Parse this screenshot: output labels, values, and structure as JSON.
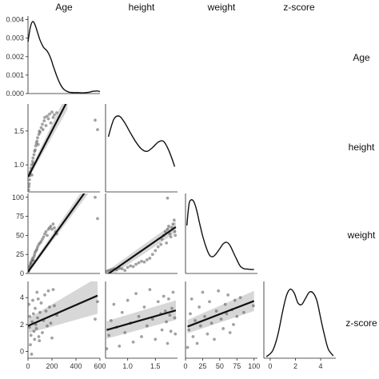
{
  "chart_data": {
    "type": "scatter-matrix",
    "variables": [
      "Age",
      "height",
      "weight",
      "z-score"
    ],
    "ranges": {
      "Age": [
        0,
        600
      ],
      "height": [
        0.6,
        1.9
      ],
      "weight": [
        0,
        105
      ],
      "z-score": [
        -0.5,
        5.2
      ]
    },
    "tick_labels": {
      "x": {
        "Age": [
          "0",
          "200",
          "400",
          "600"
        ],
        "height": [
          "1.0",
          "1.5"
        ],
        "weight": [
          "0",
          "25",
          "50",
          "75",
          "100"
        ],
        "z-score": [
          "0",
          "2",
          "4"
        ]
      },
      "y": {
        "Age": [
          "0.004",
          "0.003",
          "0.002",
          "0.001",
          "0.000"
        ],
        "height": [
          "1.5",
          "1.0"
        ],
        "weight": [
          "100",
          "75",
          "50",
          "25",
          "0"
        ],
        "z-score": [
          "4",
          "2",
          "0"
        ]
      }
    },
    "tick_values": {
      "Age": [
        0,
        200,
        400,
        600
      ],
      "height": [
        1.0,
        1.5
      ],
      "weight": [
        0,
        25,
        50,
        75,
        100
      ],
      "z-score": [
        0,
        2,
        4
      ],
      "age_density_y": [
        0.004,
        0.003,
        0.002,
        0.001,
        0.0
      ]
    },
    "density_Age": {
      "x": [
        0,
        20,
        40,
        60,
        80,
        100,
        130,
        160,
        190,
        210,
        240,
        270,
        300,
        340,
        380,
        420,
        460,
        500,
        540,
        580,
        600
      ],
      "y": [
        0.0028,
        0.0036,
        0.0039,
        0.0037,
        0.0033,
        0.0029,
        0.0025,
        0.0023,
        0.0019,
        0.0015,
        0.00095,
        0.0005,
        0.00022,
        8e-05,
        5e-05,
        5e-05,
        4e-05,
        6e-05,
        0.00012,
        0.00014,
        0.0001
      ],
      "ylim": [
        0,
        0.0042
      ]
    },
    "density_height": {
      "x": [
        0.65,
        0.75,
        0.85,
        0.95,
        1.05,
        1.15,
        1.25,
        1.35,
        1.45,
        1.55,
        1.65,
        1.75,
        1.85
      ],
      "y": [
        0.72,
        0.95,
        0.99,
        0.9,
        0.77,
        0.65,
        0.56,
        0.53,
        0.58,
        0.65,
        0.66,
        0.53,
        0.33
      ],
      "ylim": [
        0,
        1.15
      ]
    },
    "density_weight": {
      "x": [
        2,
        5,
        8,
        12,
        16,
        20,
        25,
        30,
        35,
        40,
        45,
        50,
        55,
        60,
        65,
        70,
        75,
        80,
        85,
        90,
        95,
        100
      ],
      "y": [
        0.6,
        0.86,
        0.92,
        0.9,
        0.8,
        0.65,
        0.47,
        0.33,
        0.23,
        0.21,
        0.25,
        0.31,
        0.37,
        0.39,
        0.35,
        0.26,
        0.17,
        0.09,
        0.06,
        0.055,
        0.05,
        0.05
      ],
      "ylim": [
        0,
        1.0
      ]
    },
    "density_zscore": {
      "x": [
        -0.3,
        0.2,
        0.6,
        1.0,
        1.3,
        1.6,
        1.9,
        2.2,
        2.5,
        2.8,
        3.1,
        3.4,
        3.7,
        4.0,
        4.3,
        4.6,
        5.0
      ],
      "y": [
        0.02,
        0.1,
        0.3,
        0.62,
        0.82,
        0.9,
        0.85,
        0.72,
        0.7,
        0.78,
        0.86,
        0.85,
        0.75,
        0.52,
        0.3,
        0.12,
        0.03
      ],
      "ylim": [
        0,
        1.0
      ]
    },
    "scatter_Age_height": [
      [
        5,
        0.63
      ],
      [
        8,
        0.68
      ],
      [
        10,
        0.72
      ],
      [
        12,
        0.78
      ],
      [
        15,
        0.84
      ],
      [
        18,
        0.87
      ],
      [
        20,
        0.9
      ],
      [
        25,
        0.95
      ],
      [
        30,
        1.0
      ],
      [
        33,
        0.85
      ],
      [
        38,
        1.05
      ],
      [
        42,
        1.1
      ],
      [
        45,
        1.02
      ],
      [
        50,
        1.15
      ],
      [
        55,
        1.2
      ],
      [
        60,
        1.22
      ],
      [
        65,
        1.28
      ],
      [
        70,
        1.32
      ],
      [
        75,
        1.35
      ],
      [
        80,
        1.4
      ],
      [
        85,
        1.3
      ],
      [
        90,
        1.45
      ],
      [
        95,
        1.5
      ],
      [
        100,
        1.48
      ],
      [
        110,
        1.55
      ],
      [
        120,
        1.6
      ],
      [
        125,
        1.52
      ],
      [
        135,
        1.65
      ],
      [
        140,
        1.7
      ],
      [
        150,
        1.58
      ],
      [
        160,
        1.72
      ],
      [
        170,
        1.68
      ],
      [
        180,
        1.75
      ],
      [
        190,
        1.62
      ],
      [
        200,
        1.78
      ],
      [
        210,
        1.7
      ],
      [
        220,
        1.74
      ],
      [
        240,
        1.77
      ],
      [
        560,
        1.66
      ],
      [
        580,
        1.52
      ]
    ],
    "fit_Age_height": {
      "x": [
        0,
        330
      ],
      "y": [
        0.82,
        1.95
      ],
      "lo": [
        0.78,
        1.82
      ],
      "hi": [
        0.86,
        2.08
      ]
    },
    "scatter_Age_weight": [
      [
        5,
        3
      ],
      [
        8,
        5
      ],
      [
        10,
        7
      ],
      [
        14,
        9
      ],
      [
        18,
        11
      ],
      [
        22,
        14
      ],
      [
        26,
        13
      ],
      [
        30,
        16
      ],
      [
        35,
        18
      ],
      [
        40,
        20
      ],
      [
        45,
        17
      ],
      [
        50,
        22
      ],
      [
        55,
        25
      ],
      [
        60,
        28
      ],
      [
        68,
        30
      ],
      [
        75,
        32
      ],
      [
        80,
        35
      ],
      [
        90,
        38
      ],
      [
        100,
        40
      ],
      [
        110,
        42
      ],
      [
        120,
        45
      ],
      [
        130,
        48
      ],
      [
        140,
        52
      ],
      [
        150,
        55
      ],
      [
        160,
        50
      ],
      [
        170,
        58
      ],
      [
        180,
        60
      ],
      [
        190,
        62
      ],
      [
        200,
        58
      ],
      [
        210,
        65
      ],
      [
        220,
        60
      ],
      [
        230,
        55
      ],
      [
        240,
        52
      ],
      [
        560,
        100
      ],
      [
        580,
        72
      ]
    ],
    "fit_Age_weight": {
      "x": [
        0,
        500
      ],
      "y": [
        2,
        112
      ],
      "lo": [
        0,
        104
      ],
      "hi": [
        5,
        120
      ]
    },
    "scatter_height_weight": [
      [
        0.62,
        3
      ],
      [
        0.66,
        4
      ],
      [
        0.7,
        5
      ],
      [
        0.75,
        6
      ],
      [
        0.8,
        5
      ],
      [
        0.85,
        7
      ],
      [
        0.9,
        6
      ],
      [
        0.95,
        4
      ],
      [
        1.0,
        8
      ],
      [
        1.05,
        10
      ],
      [
        1.1,
        9
      ],
      [
        1.15,
        12
      ],
      [
        1.2,
        14
      ],
      [
        1.25,
        16
      ],
      [
        1.3,
        15
      ],
      [
        1.35,
        18
      ],
      [
        1.4,
        20
      ],
      [
        1.45,
        25
      ],
      [
        1.5,
        30
      ],
      [
        1.55,
        35
      ],
      [
        1.6,
        38
      ],
      [
        1.62,
        45
      ],
      [
        1.65,
        50
      ],
      [
        1.68,
        55
      ],
      [
        1.7,
        40
      ],
      [
        1.72,
        58
      ],
      [
        1.74,
        62
      ],
      [
        1.76,
        52
      ],
      [
        1.78,
        48
      ],
      [
        1.8,
        60
      ],
      [
        1.82,
        65
      ],
      [
        1.84,
        70
      ],
      [
        1.85,
        55
      ],
      [
        1.86,
        50
      ],
      [
        1.72,
        99
      ]
    ],
    "fit_height_weight": {
      "x": [
        0.62,
        1.87
      ],
      "y": [
        -2,
        61
      ],
      "lo": [
        -7,
        54
      ],
      "hi": [
        3,
        68
      ]
    },
    "scatter_Age_zscore": [
      [
        8,
        3.5
      ],
      [
        12,
        1.8
      ],
      [
        15,
        2.6
      ],
      [
        20,
        0.5
      ],
      [
        25,
        1.2
      ],
      [
        30,
        -0.2
      ],
      [
        35,
        2.2
      ],
      [
        40,
        3.8
      ],
      [
        45,
        2.8
      ],
      [
        50,
        1.5
      ],
      [
        55,
        0.9
      ],
      [
        60,
        3.2
      ],
      [
        65,
        2.0
      ],
      [
        70,
        1.7
      ],
      [
        75,
        4.4
      ],
      [
        80,
        2.5
      ],
      [
        85,
        3.9
      ],
      [
        90,
        1.1
      ],
      [
        95,
        0.8
      ],
      [
        100,
        2.9
      ],
      [
        110,
        3.6
      ],
      [
        120,
        1.4
      ],
      [
        130,
        2.3
      ],
      [
        140,
        4.2
      ],
      [
        150,
        3.0
      ],
      [
        160,
        1.9
      ],
      [
        170,
        4.5
      ],
      [
        180,
        3.3
      ],
      [
        190,
        2.1
      ],
      [
        200,
        1.0
      ],
      [
        210,
        4.6
      ],
      [
        220,
        3.4
      ],
      [
        240,
        2.7
      ],
      [
        560,
        2.4
      ],
      [
        580,
        3.7
      ]
    ],
    "fit_Age_zscore": {
      "x": [
        0,
        580
      ],
      "y": [
        1.9,
        4.15
      ],
      "lo": [
        1.35,
        2.8
      ],
      "hi": [
        2.45,
        5.5
      ]
    },
    "scatter_height_zscore": [
      [
        0.62,
        0.2
      ],
      [
        0.66,
        1.2
      ],
      [
        0.7,
        2.3
      ],
      [
        0.75,
        3.5
      ],
      [
        0.8,
        1.8
      ],
      [
        0.85,
        0.4
      ],
      [
        0.9,
        2.9
      ],
      [
        0.95,
        1.4
      ],
      [
        1.0,
        3.8
      ],
      [
        1.05,
        2.1
      ],
      [
        1.1,
        0.7
      ],
      [
        1.15,
        4.3
      ],
      [
        1.2,
        2.6
      ],
      [
        1.25,
        1.1
      ],
      [
        1.3,
        3.3
      ],
      [
        1.35,
        1.9
      ],
      [
        1.4,
        4.6
      ],
      [
        1.45,
        2.4
      ],
      [
        1.5,
        0.9
      ],
      [
        1.55,
        3.7
      ],
      [
        1.6,
        2.8
      ],
      [
        1.62,
        1.6
      ],
      [
        1.65,
        4.1
      ],
      [
        1.68,
        3.0
      ],
      [
        1.7,
        2.2
      ],
      [
        1.72,
        0.6
      ],
      [
        1.74,
        3.9
      ],
      [
        1.76,
        2.7
      ],
      [
        1.78,
        1.5
      ],
      [
        1.8,
        3.2
      ],
      [
        1.82,
        4.4
      ],
      [
        1.85,
        2.5
      ],
      [
        1.86,
        1.3
      ]
    ],
    "fit_height_zscore": {
      "x": [
        0.62,
        1.87
      ],
      "y": [
        1.6,
        3.05
      ],
      "lo": [
        0.95,
        2.35
      ],
      "hi": [
        2.25,
        3.8
      ]
    },
    "scatter_weight_zscore": [
      [
        3,
        0.3
      ],
      [
        5,
        1.6
      ],
      [
        7,
        2.8
      ],
      [
        9,
        3.9
      ],
      [
        11,
        1.1
      ],
      [
        14,
        2.3
      ],
      [
        17,
        0.6
      ],
      [
        20,
        3.3
      ],
      [
        22,
        1.9
      ],
      [
        25,
        4.4
      ],
      [
        28,
        2.6
      ],
      [
        32,
        1.3
      ],
      [
        35,
        3.7
      ],
      [
        38,
        2.1
      ],
      [
        42,
        0.9
      ],
      [
        45,
        3.0
      ],
      [
        48,
        4.5
      ],
      [
        52,
        2.4
      ],
      [
        55,
        1.7
      ],
      [
        58,
        3.5
      ],
      [
        60,
        2.8
      ],
      [
        62,
        4.2
      ],
      [
        65,
        1.4
      ],
      [
        68,
        3.1
      ],
      [
        70,
        2.0
      ],
      [
        72,
        3.8
      ],
      [
        75,
        2.6
      ],
      [
        80,
        4.0
      ],
      [
        85,
        2.9
      ],
      [
        99,
        3.4
      ]
    ],
    "fit_weight_zscore": {
      "x": [
        3,
        100
      ],
      "y": [
        1.85,
        3.75
      ],
      "lo": [
        1.35,
        3.0
      ],
      "hi": [
        2.35,
        4.5
      ]
    }
  }
}
